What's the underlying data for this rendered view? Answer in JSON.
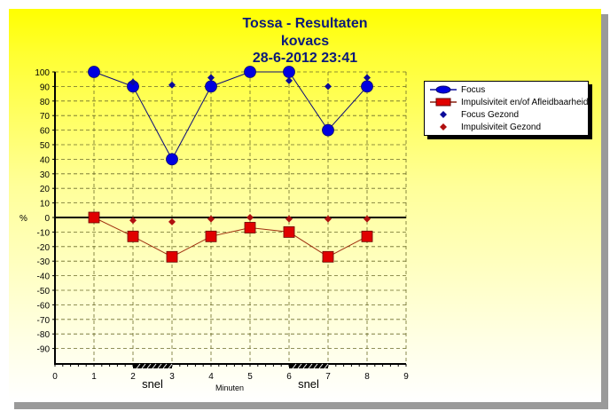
{
  "title": {
    "line1": "Tossa - Resultaten",
    "line2": "kovacs",
    "line3": "28-6-2012   23:41"
  },
  "axes": {
    "y_unit": "%",
    "x_label": "Minuten",
    "y_ticks": [
      "100",
      "90",
      "80",
      "70",
      "60",
      "50",
      "40",
      "30",
      "20",
      "10",
      "0",
      "-10",
      "-20",
      "-30",
      "-40",
      "-50",
      "-60",
      "-70",
      "-80",
      "-90"
    ],
    "x_ticks": [
      "0",
      "1",
      "2",
      "3",
      "4",
      "5",
      "6",
      "7",
      "8",
      "9"
    ],
    "annotations": [
      {
        "label": "snel",
        "from": 2,
        "to": 3
      },
      {
        "label": "snel",
        "from": 6,
        "to": 7
      }
    ]
  },
  "legend": {
    "items": [
      {
        "label": "Focus",
        "color": "#0000e0"
      },
      {
        "label": "Impulsiviteit en/of Afleidbaarheid",
        "color": "#e00000"
      },
      {
        "label": "Focus Gezond",
        "color": "#0a0a9a"
      },
      {
        "label": "Impulsiviteit Gezond",
        "color": "#b01010"
      }
    ]
  },
  "chart_data": {
    "type": "line",
    "title": "Tossa - Resultaten / kovacs / 28-6-2012 23:41",
    "xlabel": "Minuten",
    "ylabel": "%",
    "xlim": [
      0,
      9
    ],
    "ylim": [
      -100,
      100
    ],
    "grid": true,
    "legend_position": "right",
    "x": [
      1,
      2,
      3,
      4,
      5,
      6,
      7,
      8
    ],
    "series": [
      {
        "name": "Focus",
        "type": "line",
        "marker": "circle",
        "color": "#0000e0",
        "x": [
          1,
          2,
          3,
          4,
          5,
          6,
          7,
          8
        ],
        "values": [
          100,
          90,
          40,
          90,
          100,
          100,
          60,
          90
        ]
      },
      {
        "name": "Impulsiviteit en/of Afleidbaarheid",
        "type": "line",
        "marker": "square",
        "color": "#e00000",
        "x": [
          1,
          2,
          3,
          4,
          5,
          6,
          7,
          8
        ],
        "values": [
          0,
          -13,
          -27,
          -13,
          -7,
          -10,
          -27,
          -13
        ]
      },
      {
        "name": "Focus Gezond",
        "type": "scatter",
        "marker": "diamond",
        "color": "#0a0a9a",
        "x": [
          2,
          3,
          4,
          6,
          7,
          8
        ],
        "values": [
          93,
          91,
          96,
          94,
          90,
          96
        ]
      },
      {
        "name": "Impulsiviteit Gezond",
        "type": "scatter",
        "marker": "diamond",
        "color": "#b01010",
        "x": [
          2,
          3,
          4,
          5,
          6,
          7,
          8
        ],
        "values": [
          -2,
          -3,
          -1,
          0,
          -1,
          -1,
          -1
        ]
      }
    ],
    "annotations": [
      {
        "text": "snel",
        "x_range": [
          2,
          3
        ]
      },
      {
        "text": "snel",
        "x_range": [
          6,
          7
        ]
      }
    ]
  }
}
